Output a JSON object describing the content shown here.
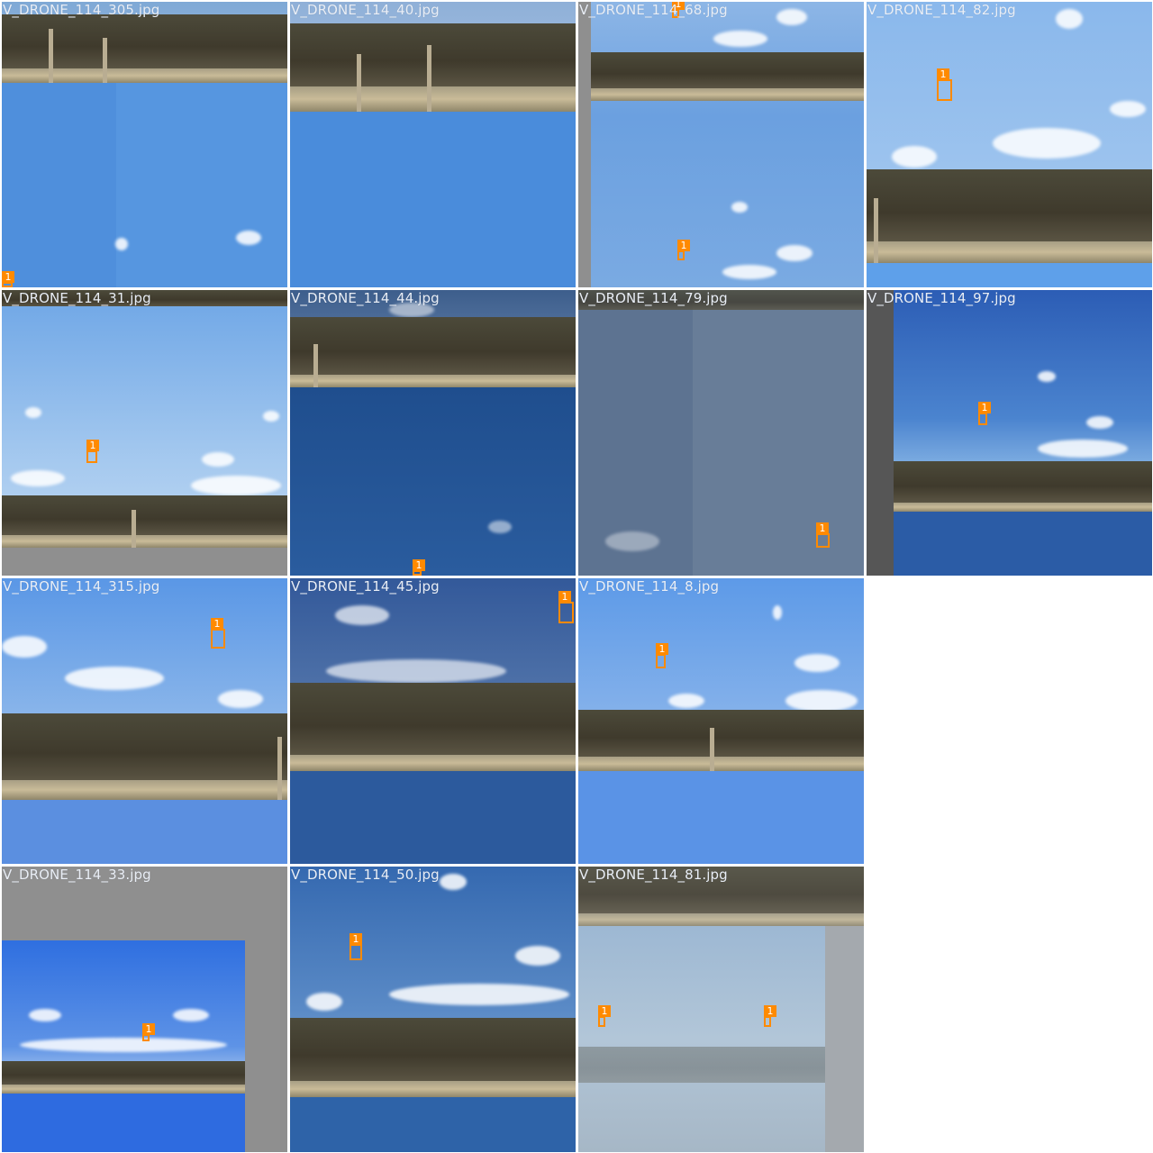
{
  "tiles": [
    {
      "filename": "V_DRONE_114_305.jpg",
      "class_label": "1"
    },
    {
      "filename": "V_DRONE_114_40.jpg"
    },
    {
      "filename": "V_DRONE_114_68.jpg",
      "class_label": "1"
    },
    {
      "filename": "V_DRONE_114_82.jpg",
      "class_label": "1"
    },
    {
      "filename": "V_DRONE_114_31.jpg",
      "class_label": "1"
    },
    {
      "filename": "V_DRONE_114_44.jpg",
      "class_label": "1"
    },
    {
      "filename": "V_DRONE_114_79.jpg",
      "class_label": "1"
    },
    {
      "filename": "V_DRONE_114_97.jpg",
      "class_label": "1"
    },
    {
      "filename": "V_DRONE_114_315.jpg",
      "class_label": "1"
    },
    {
      "filename": "V_DRONE_114_45.jpg",
      "class_label": "1"
    },
    {
      "filename": "V_DRONE_114_8.jpg",
      "class_label": "1"
    },
    {
      "filename": "V_DRONE_114_33.jpg",
      "class_label": "1"
    },
    {
      "filename": "V_DRONE_114_50.jpg",
      "class_label": "1"
    },
    {
      "filename": "V_DRONE_114_81.jpg",
      "class_label": "1"
    }
  ],
  "colors": {
    "bbox": "#ff8a00",
    "label_text": "#e9eef6",
    "padding_gray": "#8f8f8f"
  }
}
